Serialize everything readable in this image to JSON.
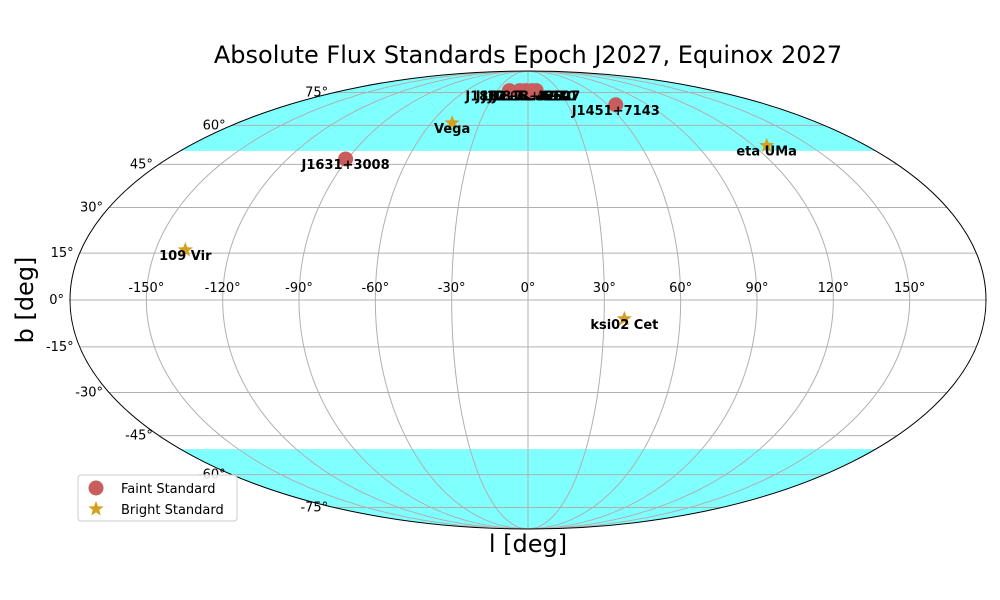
{
  "chart_data": {
    "type": "scatter",
    "projection": "mollweide",
    "title": "Absolute Flux Standards Epoch J2027, Equinox 2027",
    "xlabel": "l [deg]",
    "ylabel": "b [deg]",
    "xlim": [
      -180,
      180
    ],
    "ylim": [
      -90,
      90
    ],
    "grid": true,
    "x_tick_labels": [
      "-150°",
      "-120°",
      "-90°",
      "-60°",
      "-30°",
      "0°",
      "30°",
      "60°",
      "90°",
      "120°",
      "150°"
    ],
    "y_tick_labels": [
      "-75°",
      "-60°",
      "-45°",
      "-30°",
      "-15°",
      "0°",
      "15°",
      "30°",
      "45°",
      "60°",
      "75°"
    ],
    "shaded_bands": [
      {
        "b_min": 50,
        "b_max": 90,
        "color": "#80ffff"
      },
      {
        "b_min": -90,
        "b_max": -50,
        "color": "#80ffff"
      }
    ],
    "legend_placement": "lower-left",
    "series": [
      {
        "name": "Faint Standard",
        "marker": "circle",
        "color": "#c95c5c",
        "points": [
          {
            "label": "J1631+3008",
            "x": -91,
            "y": 47
          },
          {
            "label": "J1451+7143",
            "x": 66,
            "y": 69
          },
          {
            "label": "J1812+6029",
            "x": -8,
            "y": 76
          },
          {
            "label": "J1757+6610",
            "x": -2,
            "y": 76
          },
          {
            "label": "J1732+6627",
            "x": 8,
            "y": 76
          },
          {
            "label": "J1802+6049",
            "x": -18,
            "y": 76
          },
          {
            "label": "J1813+6930",
            "x": 4,
            "y": 76
          }
        ]
      },
      {
        "name": "Bright Standard",
        "marker": "star",
        "color": "#d4a020",
        "points": [
          {
            "label": "Vega",
            "x": -47,
            "y": 61
          },
          {
            "label": "eta UMa",
            "x": 127,
            "y": 52
          },
          {
            "label": "109 Vir",
            "x": -138,
            "y": 16
          },
          {
            "label": "ksi02 Cet",
            "x": 38,
            "y": -6
          }
        ]
      }
    ]
  }
}
